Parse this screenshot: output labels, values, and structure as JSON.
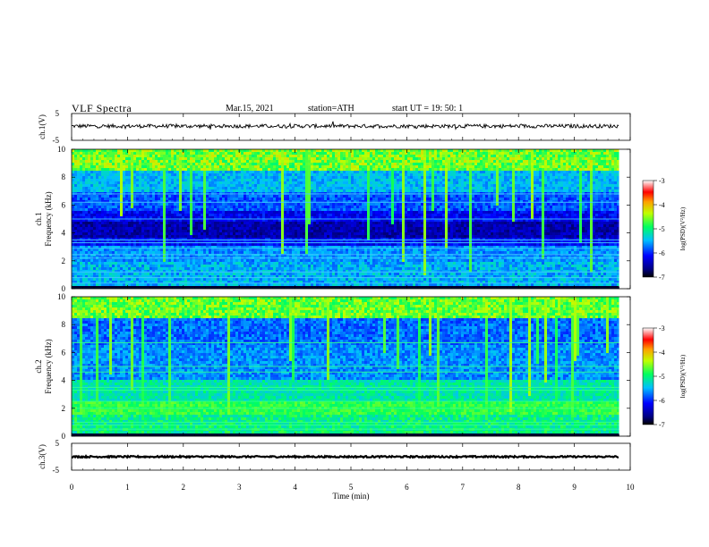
{
  "header": {
    "title": "VLF  Spectra",
    "date": "Mar.15, 2021",
    "station": "station=ATH",
    "start": "start  UT  =    19: 50: 1"
  },
  "chart_data": [
    {
      "type": "line",
      "name": "ch1-waveform",
      "ylabel": "ch.1(V)",
      "ylim": [
        -5,
        5
      ],
      "yticks": [
        "5",
        "-5"
      ],
      "xlim": [
        0,
        10
      ],
      "baseline": 0.3,
      "noise_amplitude": 0.7
    },
    {
      "type": "heatmap",
      "name": "ch1-spectrogram",
      "ylabel_lines": [
        "ch.1",
        "Frequency  (kHz)"
      ],
      "ylim": [
        0,
        10
      ],
      "yticks": [
        "0",
        "2",
        "4",
        "6",
        "8",
        "10"
      ],
      "xlim": [
        0,
        10
      ],
      "data_end_min": 9.8,
      "colorbar": {
        "label": "log(PSD)(V²/Hz)",
        "range": [
          -7,
          -3
        ],
        "ticks": [
          "-3",
          "-4",
          "-5",
          "-6",
          "-7"
        ]
      },
      "lines_khz": [
        0.4,
        0.8,
        1.2,
        2.2,
        2.45,
        2.9,
        3.3,
        3.5,
        5.0,
        6.2,
        6.8
      ]
    },
    {
      "type": "heatmap",
      "name": "ch2-spectrogram",
      "ylabel_lines": [
        "ch.2",
        "Frequency  (kHz)"
      ],
      "ylim": [
        0,
        10
      ],
      "yticks": [
        "0",
        "2",
        "4",
        "6",
        "8",
        "10"
      ],
      "xlim": [
        0,
        10
      ],
      "data_end_min": 9.8,
      "colorbar": {
        "label": "log(PSD)(V²/Hz)",
        "range": [
          -7,
          -3
        ],
        "ticks": [
          "-3",
          "-4",
          "-5",
          "-6",
          "-7"
        ]
      },
      "lines_khz": [
        0.5,
        0.8,
        1.0,
        2.0,
        2.5,
        3.3,
        3.5,
        4.6,
        5.0,
        6.7
      ]
    },
    {
      "type": "line",
      "name": "ch3-waveform",
      "ylabel": "ch.3(V)",
      "ylim": [
        -5,
        5
      ],
      "yticks": [
        "5",
        "-5"
      ],
      "xlim": [
        0,
        10
      ],
      "baseline": 0.0,
      "noise_amplitude": 0.3
    }
  ],
  "xaxis": {
    "label": "Time  (min)",
    "ticks": [
      "0",
      "1",
      "2",
      "3",
      "4",
      "5",
      "6",
      "7",
      "8",
      "9",
      "10"
    ]
  }
}
